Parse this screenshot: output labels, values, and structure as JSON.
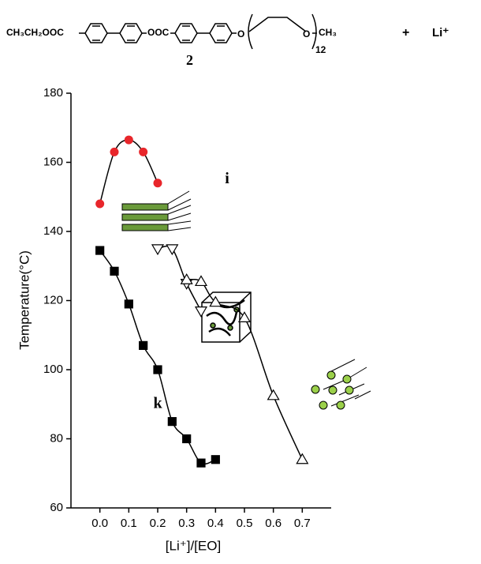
{
  "scheme": {
    "left_group": "CH₃CH₂OOC",
    "ester": "OOC",
    "ether_o1": "O",
    "ether_o2": "O",
    "end_group": "CH₃",
    "repeat": "12",
    "plus": "+",
    "ion": "Li⁺",
    "compound_label": "2"
  },
  "chart_data": {
    "type": "scatter",
    "xlabel": "[Li⁺]/[EO]",
    "ylabel": "Temperature(°C)",
    "xlim": [
      -0.1,
      0.8
    ],
    "ylim": [
      60,
      180
    ],
    "xticks": [
      {
        "value": 0,
        "label": "0.0"
      },
      0.1,
      0.2,
      0.3,
      0.4,
      0.5,
      0.6,
      0.7
    ],
    "yticks": [
      60,
      80,
      100,
      120,
      140,
      160,
      180
    ],
    "line": "smooth",
    "series": [
      {
        "marker": "circle",
        "filled": true,
        "color": "#e8262b",
        "x": [
          0,
          0.05,
          0.1,
          0.15,
          0.2
        ],
        "values": [
          148,
          163,
          166.5,
          163,
          154
        ]
      },
      {
        "marker": "square",
        "filled": true,
        "color": "#000000",
        "x": [
          0,
          0.05,
          0.1,
          0.15,
          0.2,
          0.25,
          0.3,
          0.35,
          0.4
        ],
        "values": [
          134.5,
          128.5,
          119,
          107,
          100,
          85,
          80,
          73,
          74
        ]
      },
      {
        "marker": "triangle-down",
        "filled": false,
        "color": "#000000",
        "x": [
          0.2,
          0.25,
          0.3,
          0.35
        ],
        "values": [
          135,
          135,
          125,
          117
        ]
      },
      {
        "marker": "triangle-up",
        "filled": false,
        "color": "#000000",
        "x": [
          0.3,
          0.35,
          0.4,
          0.5,
          0.6,
          0.7
        ],
        "values": [
          126,
          125.5,
          119.5,
          115,
          92.5,
          74
        ]
      }
    ],
    "annotations": [
      {
        "text": "i",
        "x": 0.44,
        "y": 155
      },
      {
        "text": "k",
        "x": 0.2,
        "y": 90
      }
    ]
  }
}
